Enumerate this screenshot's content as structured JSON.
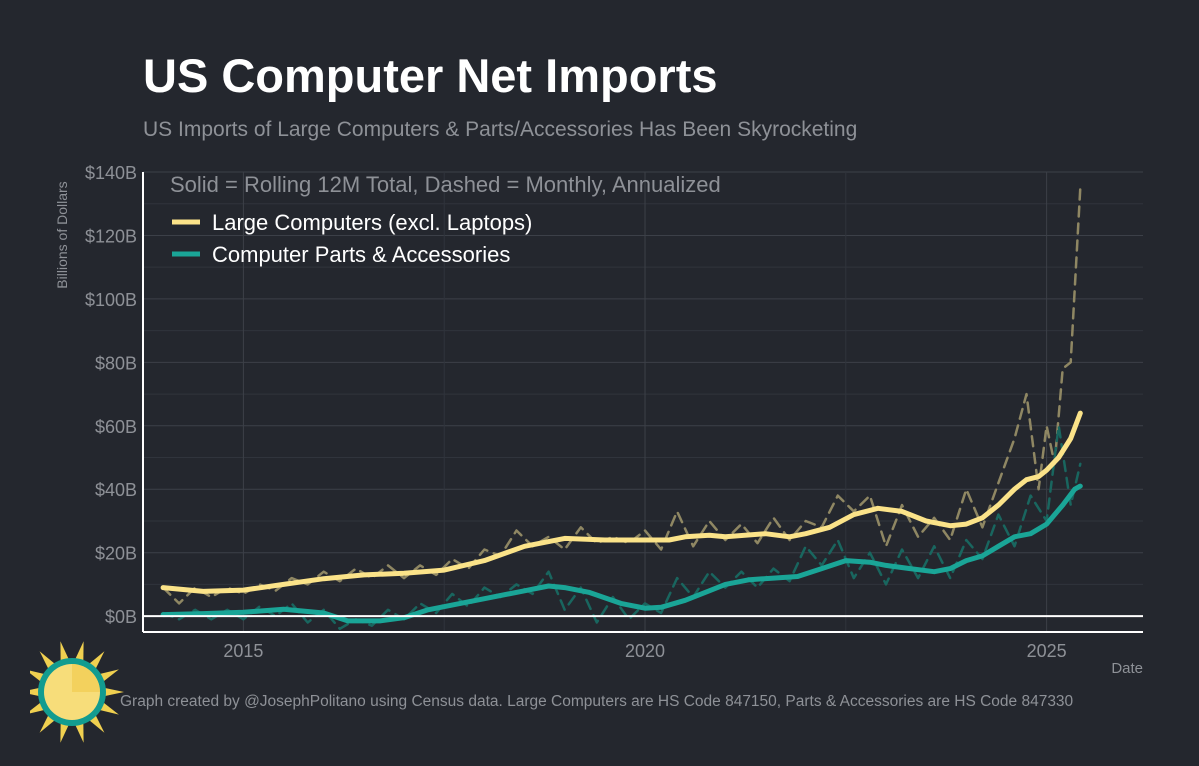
{
  "title": "US Computer Net Imports",
  "subtitle": "US Imports of Large Computers & Parts/Accessories Has Been Skyrocketing",
  "footer_note": "Graph created by @JosephPolitano using Census data. Large Computers are HS Code 847150, Parts & Accessories are HS Code 847330",
  "logo": {
    "icon": "sun-icon",
    "colors": {
      "sun": "#f7dd7a",
      "ray": "#f0d050",
      "ring": "#129c90"
    }
  },
  "chart_data": {
    "type": "line",
    "title": "US Computer Net Imports",
    "subtitle": "US Imports of Large Computers & Parts/Accessories Has Been Skyrocketing",
    "xlabel": "Date",
    "ylabel": "Billions of Dollars",
    "legend_title": "Solid = Rolling 12M Total, Dashed = Monthly, Annualized",
    "legend_position": "top-left",
    "xlim": [
      2013.75,
      2026.2
    ],
    "ylim": [
      -5,
      140
    ],
    "x_ticks": [
      2015,
      2020,
      2025
    ],
    "x_tick_labels": [
      "2015",
      "2020",
      "2025"
    ],
    "y_ticks": [
      0,
      20,
      40,
      60,
      80,
      100,
      120,
      140
    ],
    "y_tick_labels": [
      "$0B",
      "$20B",
      "$40B",
      "$60B",
      "$80B",
      "$100B",
      "$120B",
      "$140B"
    ],
    "grid": true,
    "series": [
      {
        "name": "Large Computers (excl. Laptops)",
        "style": "solid",
        "color": "#fbe389",
        "points": [
          [
            2014.0,
            9
          ],
          [
            2014.5,
            7.8
          ],
          [
            2015.0,
            8.2
          ],
          [
            2015.5,
            10
          ],
          [
            2016.0,
            11.8
          ],
          [
            2016.5,
            13
          ],
          [
            2017.0,
            13.5
          ],
          [
            2017.5,
            14.5
          ],
          [
            2018.0,
            17.5
          ],
          [
            2018.5,
            22
          ],
          [
            2019.0,
            24.5
          ],
          [
            2019.5,
            24
          ],
          [
            2020.0,
            24
          ],
          [
            2020.3,
            24
          ],
          [
            2020.5,
            25
          ],
          [
            2020.8,
            25.5
          ],
          [
            2021.0,
            25
          ],
          [
            2021.5,
            26
          ],
          [
            2021.8,
            25
          ],
          [
            2022.0,
            26
          ],
          [
            2022.3,
            28
          ],
          [
            2022.6,
            32
          ],
          [
            2022.9,
            34
          ],
          [
            2023.2,
            33
          ],
          [
            2023.5,
            30
          ],
          [
            2023.8,
            28.5
          ],
          [
            2024.0,
            29
          ],
          [
            2024.2,
            31
          ],
          [
            2024.4,
            35
          ],
          [
            2024.6,
            40
          ],
          [
            2024.75,
            43
          ],
          [
            2024.9,
            44
          ],
          [
            2025.0,
            46
          ],
          [
            2025.15,
            50
          ],
          [
            2025.3,
            56
          ],
          [
            2025.42,
            64
          ]
        ]
      },
      {
        "name": "Computer Parts & Accessories",
        "style": "solid",
        "color": "#1aa597",
        "points": [
          [
            2014.0,
            0.5
          ],
          [
            2014.5,
            0.8
          ],
          [
            2015.0,
            1.2
          ],
          [
            2015.5,
            2.2
          ],
          [
            2016.0,
            1
          ],
          [
            2016.3,
            -1.5
          ],
          [
            2016.7,
            -1.5
          ],
          [
            2017.0,
            -0.5
          ],
          [
            2017.3,
            2
          ],
          [
            2017.7,
            4
          ],
          [
            2018.0,
            5.5
          ],
          [
            2018.5,
            8
          ],
          [
            2018.8,
            9.5
          ],
          [
            2019.0,
            9
          ],
          [
            2019.3,
            7.5
          ],
          [
            2019.7,
            4
          ],
          [
            2020.0,
            2.5
          ],
          [
            2020.2,
            2.8
          ],
          [
            2020.5,
            5
          ],
          [
            2020.8,
            8
          ],
          [
            2021.0,
            10
          ],
          [
            2021.3,
            11.5
          ],
          [
            2021.6,
            12
          ],
          [
            2021.9,
            12.5
          ],
          [
            2022.2,
            15
          ],
          [
            2022.5,
            17.5
          ],
          [
            2022.8,
            17
          ],
          [
            2023.0,
            16
          ],
          [
            2023.3,
            15
          ],
          [
            2023.6,
            14
          ],
          [
            2023.8,
            15
          ],
          [
            2024.0,
            17.5
          ],
          [
            2024.2,
            19
          ],
          [
            2024.4,
            22
          ],
          [
            2024.6,
            25
          ],
          [
            2024.8,
            26
          ],
          [
            2025.0,
            29
          ],
          [
            2025.2,
            35
          ],
          [
            2025.35,
            40
          ],
          [
            2025.42,
            41
          ]
        ]
      },
      {
        "name": "Large Computers monthly annualized",
        "style": "dashed",
        "color": "#8f8763",
        "points": [
          [
            2014.0,
            9
          ],
          [
            2014.2,
            4
          ],
          [
            2014.4,
            9
          ],
          [
            2014.6,
            6
          ],
          [
            2014.8,
            9
          ],
          [
            2015.0,
            7
          ],
          [
            2015.2,
            10
          ],
          [
            2015.4,
            8
          ],
          [
            2015.6,
            12
          ],
          [
            2015.8,
            10
          ],
          [
            2016.0,
            14
          ],
          [
            2016.2,
            11
          ],
          [
            2016.4,
            15
          ],
          [
            2016.6,
            12
          ],
          [
            2016.8,
            16
          ],
          [
            2017.0,
            12
          ],
          [
            2017.2,
            16
          ],
          [
            2017.4,
            13
          ],
          [
            2017.6,
            18
          ],
          [
            2017.8,
            15
          ],
          [
            2018.0,
            21
          ],
          [
            2018.2,
            19
          ],
          [
            2018.4,
            27
          ],
          [
            2018.6,
            22
          ],
          [
            2018.8,
            25
          ],
          [
            2019.0,
            21
          ],
          [
            2019.2,
            28
          ],
          [
            2019.4,
            23
          ],
          [
            2019.6,
            25
          ],
          [
            2019.8,
            23
          ],
          [
            2020.0,
            27
          ],
          [
            2020.2,
            21
          ],
          [
            2020.4,
            33
          ],
          [
            2020.6,
            22
          ],
          [
            2020.8,
            30
          ],
          [
            2021.0,
            24
          ],
          [
            2021.2,
            29
          ],
          [
            2021.4,
            23
          ],
          [
            2021.6,
            31
          ],
          [
            2021.8,
            24
          ],
          [
            2022.0,
            30
          ],
          [
            2022.2,
            28
          ],
          [
            2022.4,
            38
          ],
          [
            2022.6,
            33
          ],
          [
            2022.8,
            38
          ],
          [
            2023.0,
            22
          ],
          [
            2023.2,
            35
          ],
          [
            2023.4,
            25
          ],
          [
            2023.6,
            31
          ],
          [
            2023.8,
            24
          ],
          [
            2024.0,
            40
          ],
          [
            2024.2,
            28
          ],
          [
            2024.4,
            42
          ],
          [
            2024.6,
            56
          ],
          [
            2024.75,
            70
          ],
          [
            2024.9,
            40
          ],
          [
            2025.0,
            60
          ],
          [
            2025.1,
            48
          ],
          [
            2025.2,
            78
          ],
          [
            2025.3,
            80
          ],
          [
            2025.42,
            135
          ]
        ]
      },
      {
        "name": "Computer Parts monthly annualized",
        "style": "dashed",
        "color": "#19665f",
        "points": [
          [
            2014.0,
            1
          ],
          [
            2014.2,
            -1
          ],
          [
            2014.4,
            2
          ],
          [
            2014.6,
            -1
          ],
          [
            2014.8,
            2
          ],
          [
            2015.0,
            -1
          ],
          [
            2015.2,
            3
          ],
          [
            2015.4,
            0
          ],
          [
            2015.6,
            4
          ],
          [
            2015.8,
            -2
          ],
          [
            2016.0,
            2
          ],
          [
            2016.2,
            -4
          ],
          [
            2016.4,
            -1
          ],
          [
            2016.6,
            -3
          ],
          [
            2016.8,
            2
          ],
          [
            2017.0,
            -1
          ],
          [
            2017.2,
            4
          ],
          [
            2017.4,
            1
          ],
          [
            2017.6,
            7
          ],
          [
            2017.8,
            3
          ],
          [
            2018.0,
            9
          ],
          [
            2018.2,
            6
          ],
          [
            2018.4,
            10
          ],
          [
            2018.6,
            7
          ],
          [
            2018.8,
            14
          ],
          [
            2019.0,
            2
          ],
          [
            2019.2,
            9
          ],
          [
            2019.4,
            -2
          ],
          [
            2019.6,
            6
          ],
          [
            2019.8,
            -1
          ],
          [
            2020.0,
            4
          ],
          [
            2020.2,
            1
          ],
          [
            2020.4,
            12
          ],
          [
            2020.6,
            6
          ],
          [
            2020.8,
            14
          ],
          [
            2021.0,
            9
          ],
          [
            2021.2,
            14
          ],
          [
            2021.4,
            9
          ],
          [
            2021.6,
            15
          ],
          [
            2021.8,
            11
          ],
          [
            2022.0,
            22
          ],
          [
            2022.2,
            16
          ],
          [
            2022.4,
            24
          ],
          [
            2022.6,
            12
          ],
          [
            2022.8,
            20
          ],
          [
            2023.0,
            10
          ],
          [
            2023.2,
            21
          ],
          [
            2023.4,
            12
          ],
          [
            2023.6,
            22
          ],
          [
            2023.8,
            12
          ],
          [
            2024.0,
            24
          ],
          [
            2024.2,
            18
          ],
          [
            2024.4,
            32
          ],
          [
            2024.6,
            22
          ],
          [
            2024.8,
            38
          ],
          [
            2025.0,
            30
          ],
          [
            2025.15,
            60
          ],
          [
            2025.3,
            35
          ],
          [
            2025.42,
            48
          ]
        ]
      }
    ],
    "legend_entries": [
      "Large Computers (excl. Laptops)",
      "Computer Parts & Accessories"
    ]
  }
}
